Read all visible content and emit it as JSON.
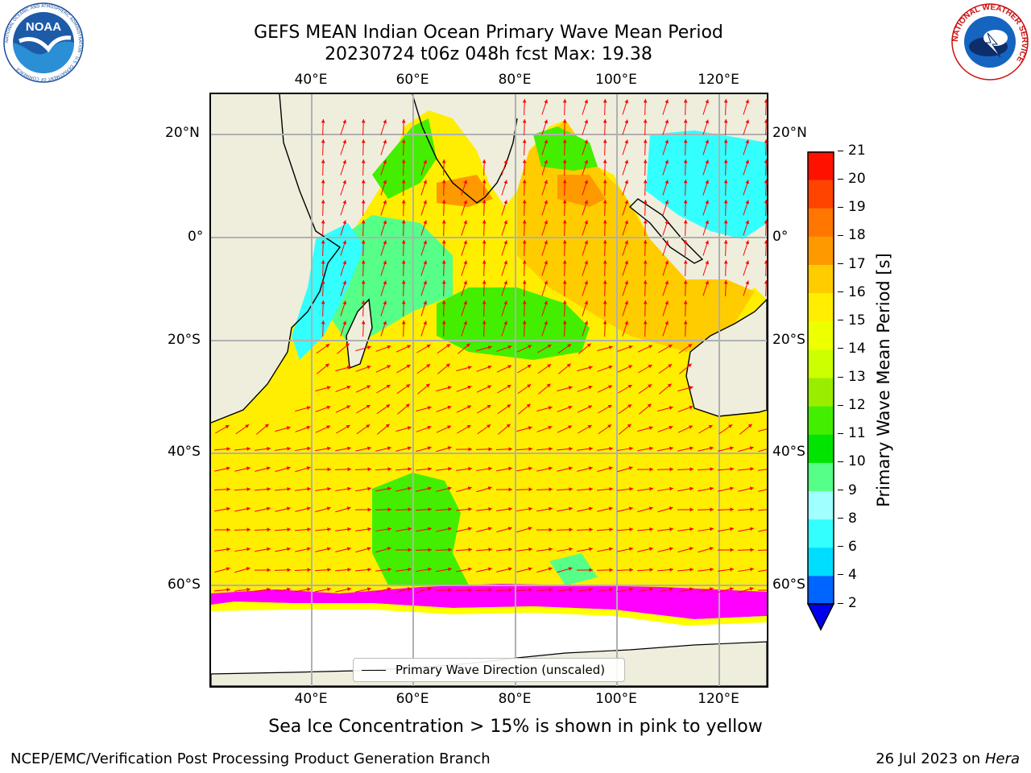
{
  "header": {
    "title_line1": "GEFS MEAN Indian Ocean Primary Wave Mean Period",
    "title_line2": "20230724 t06z 048h fcst   Max: 19.38"
  },
  "logos": {
    "noaa_text": "NOAA",
    "noaa_ring_text": "NATIONAL OCEANIC AND ATMOSPHERIC ADMINISTRATION · U.S. DEPARTMENT OF COMMERCE",
    "nws_ring_text": "NATIONAL WEATHER SERVICE"
  },
  "map": {
    "lon_ticks": [
      "40°E",
      "60°E",
      "80°E",
      "100°E",
      "120°E"
    ],
    "lat_ticks_left": [
      "20°N",
      "0°",
      "20°S",
      "40°S",
      "60°S"
    ],
    "lat_ticks_right": [
      "20°N",
      "0°",
      "20°S",
      "40°S",
      "60°S"
    ],
    "lon_range": [
      20,
      130
    ],
    "lat_range": [
      -75,
      27
    ],
    "legend_label": "Primary Wave Direction (unscaled)",
    "arrow_color": "#ff0000",
    "land_color": "#efeedd",
    "ice_colors": [
      "#ff00ff",
      "#ffff00"
    ]
  },
  "colorbar": {
    "label": "Primary Wave Mean Period [s]",
    "ticks": [
      "2",
      "4",
      "6",
      "8",
      "9",
      "10",
      "11",
      "12",
      "13",
      "14",
      "15",
      "16",
      "17",
      "18",
      "19",
      "20",
      "21"
    ],
    "colors": [
      "#0064ff",
      "#00ddff",
      "#33ffff",
      "#a0ffff",
      "#55ff88",
      "#00e400",
      "#44ee00",
      "#99ee00",
      "#ccff00",
      "#eeff00",
      "#ffee00",
      "#ffcc00",
      "#ff9900",
      "#ff7700",
      "#ff4400",
      "#ff1100"
    ],
    "extend_color": "#0000ee"
  },
  "note": "Sea Ice Concentration > 15% is shown in pink to yellow",
  "footer": {
    "left": "NCEP/EMC/Verification Post Processing Product Generation Branch",
    "date": "26 Jul 2023 on",
    "host": "Hera"
  }
}
